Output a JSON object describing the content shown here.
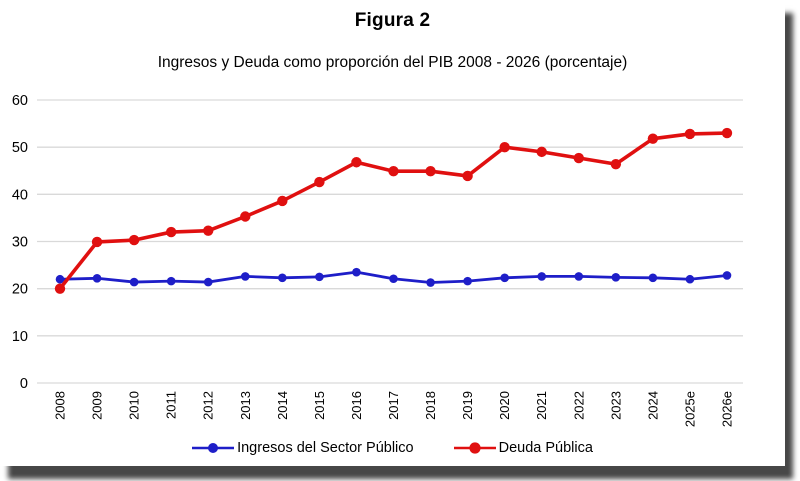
{
  "figure": {
    "title": "Figura 2",
    "subtitle": "Ingresos y Deuda como proporción del PIB 2008 - 2026 (porcentaje)"
  },
  "chart_data": {
    "type": "line",
    "title": "Figura 2",
    "subtitle": "Ingresos y Deuda como proporción del PIB 2008 - 2026 (porcentaje)",
    "categories": [
      "2008",
      "2009",
      "2010",
      "2011",
      "2012",
      "2013",
      "2014",
      "2015",
      "2016",
      "2017",
      "2018",
      "2019",
      "2020",
      "2021",
      "2022",
      "2023",
      "2024",
      "2025e",
      "2026e"
    ],
    "series": [
      {
        "name": "Ingresos del Sector Público",
        "color": "#1e1ec8",
        "values": [
          22.0,
          22.2,
          21.4,
          21.6,
          21.4,
          22.6,
          22.3,
          22.5,
          23.5,
          22.1,
          21.3,
          21.6,
          22.3,
          22.6,
          22.6,
          22.4,
          22.3,
          22.0,
          22.8
        ]
      },
      {
        "name": "Deuda Pública",
        "color": "#e01010",
        "values": [
          20.0,
          29.9,
          30.3,
          32.0,
          32.3,
          35.3,
          38.6,
          42.6,
          46.8,
          44.9,
          44.9,
          43.9,
          50.0,
          49.0,
          47.7,
          46.4,
          51.8,
          52.8,
          53.0
        ]
      }
    ],
    "xlabel": "",
    "ylabel": "",
    "ylim": [
      0,
      60
    ],
    "yticks": [
      0,
      10,
      20,
      30,
      40,
      50,
      60
    ],
    "grid": true,
    "grid_color": "#d9d9d9",
    "legend_position": "bottom"
  }
}
